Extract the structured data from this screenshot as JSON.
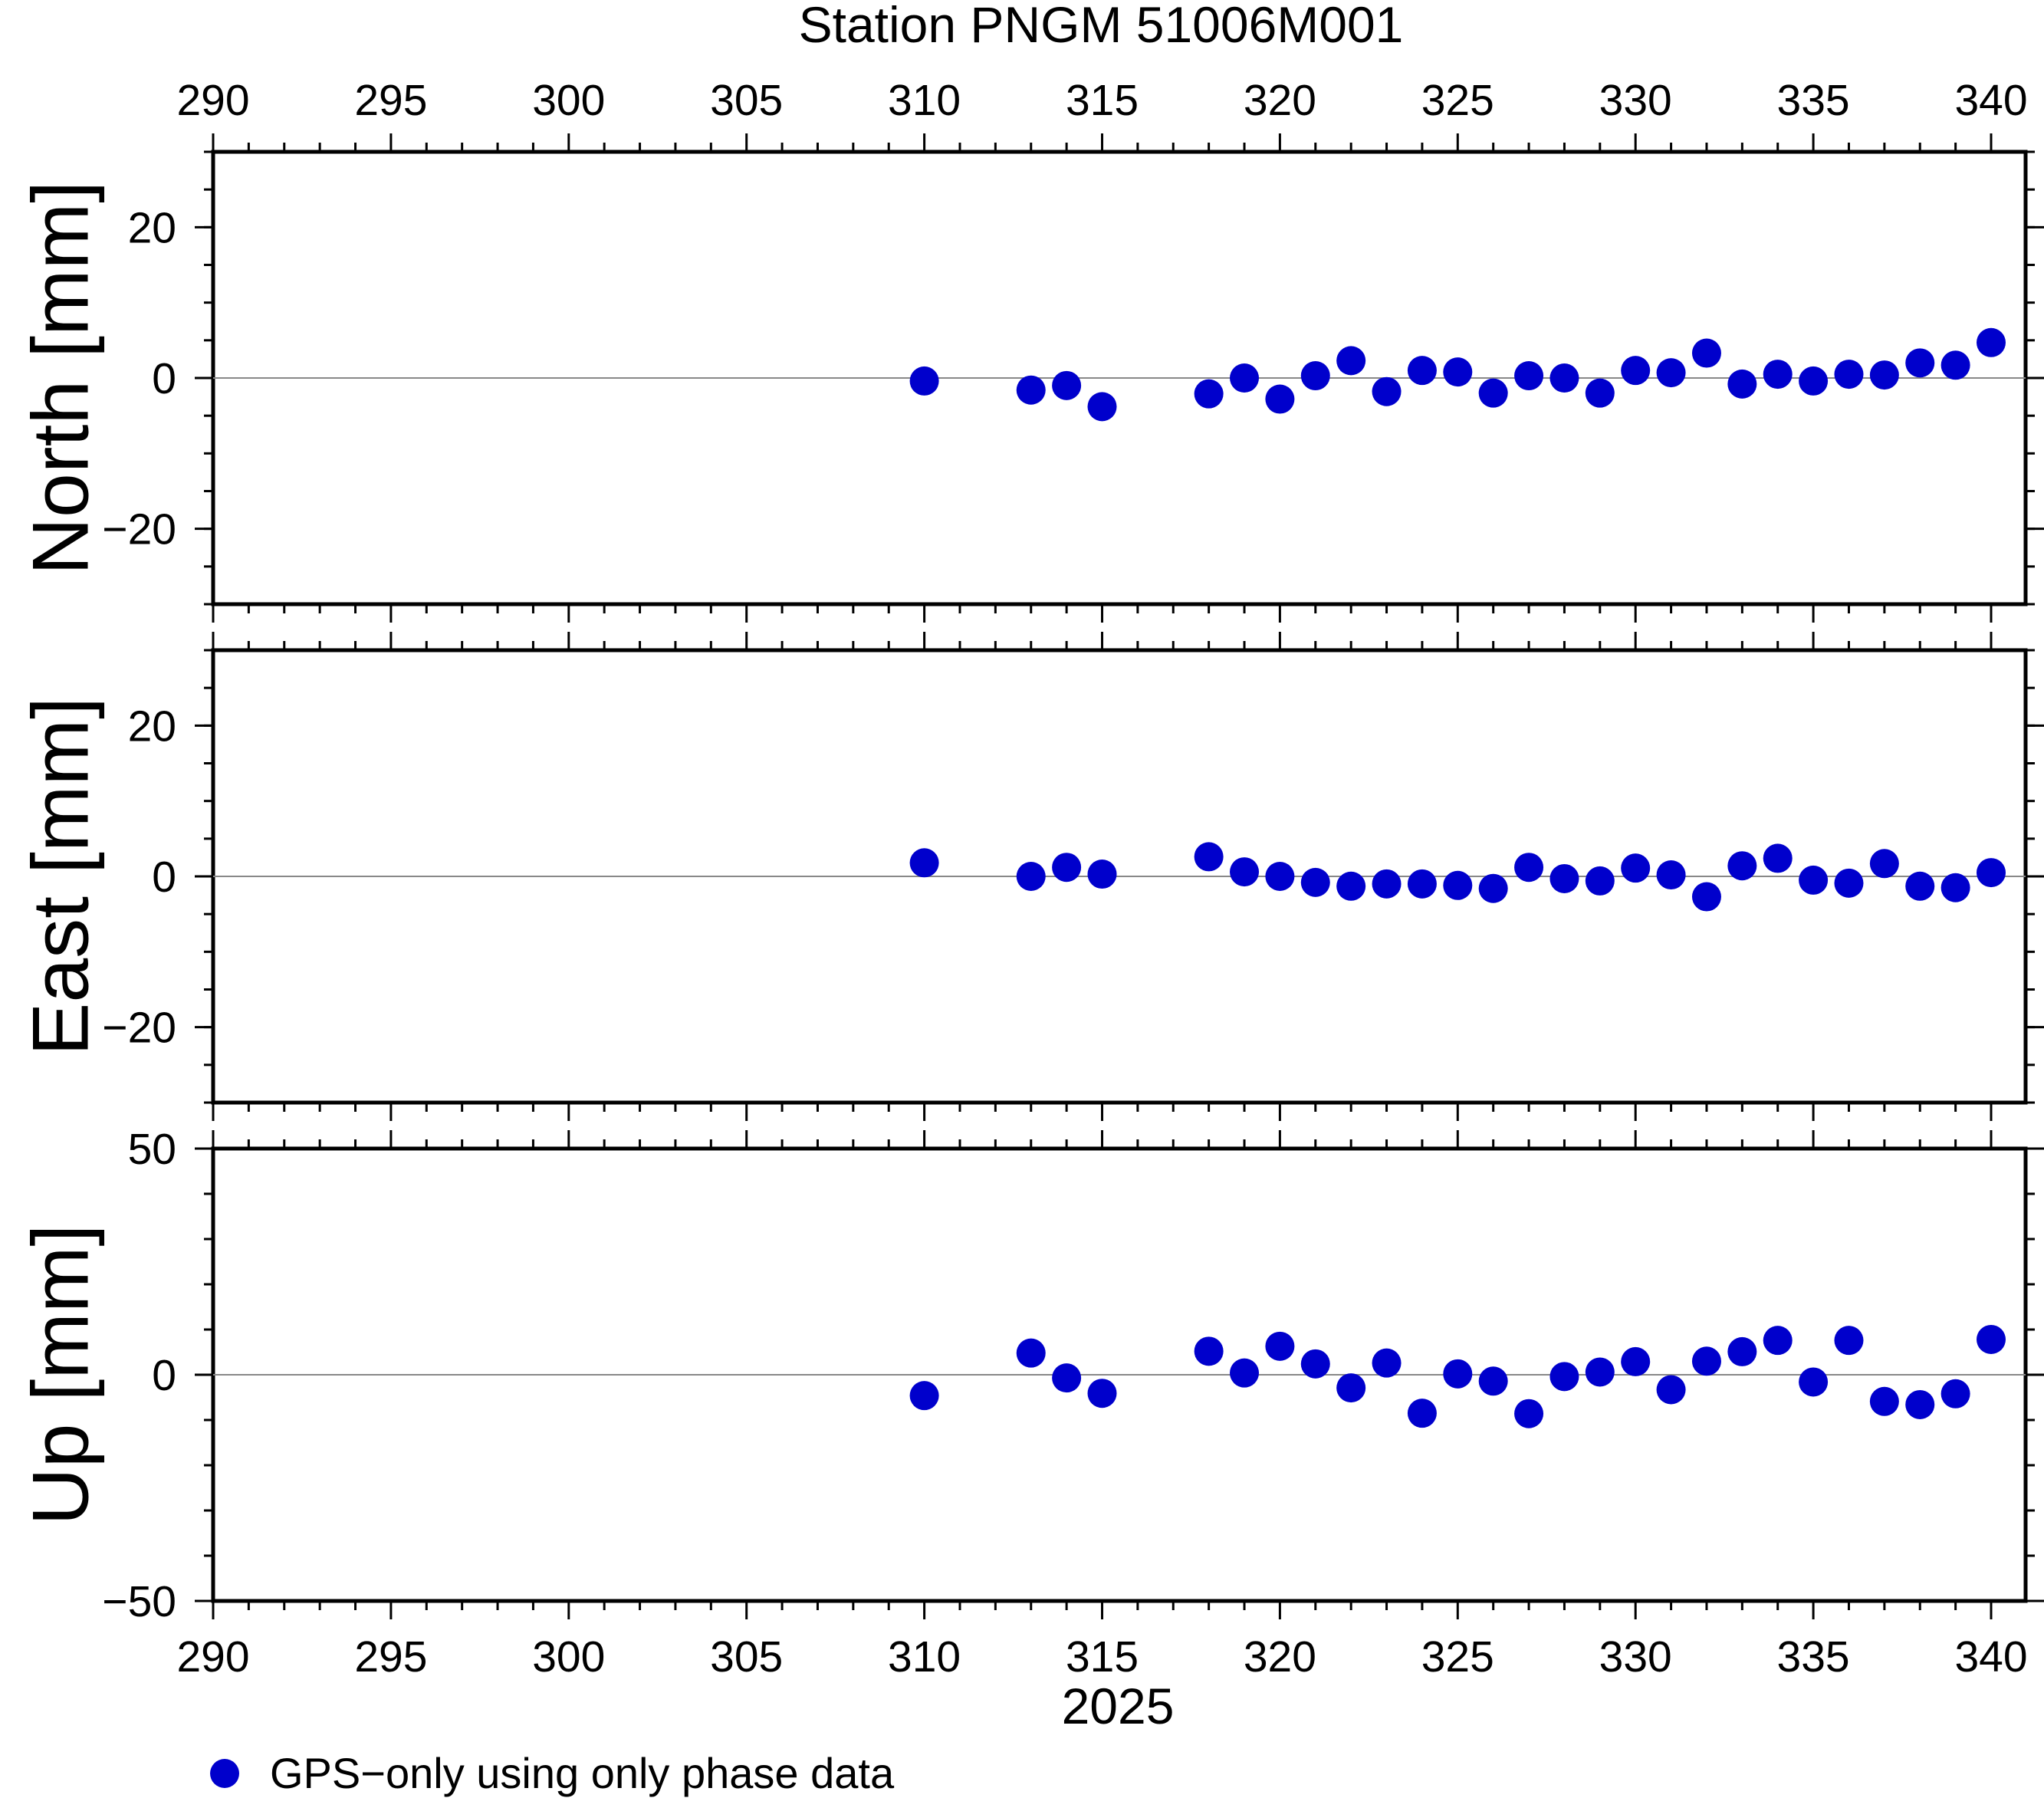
{
  "title": "Station PNGM 51006M001",
  "xlabel": "2025",
  "legend": {
    "label": "GPS−only using only phase data"
  },
  "colors": {
    "marker": "#0000cc",
    "frame": "#000000",
    "zero_line": "#888888"
  },
  "chart_data": {
    "type": "scatter",
    "title": "Station PNGM 51006M001",
    "xlabel": "2025",
    "xlim": [
      290,
      340.5
    ],
    "x_ticks": [
      290,
      295,
      300,
      305,
      310,
      315,
      320,
      325,
      330,
      335,
      340
    ],
    "grid": false,
    "legend_position": "bottom-left",
    "x": [
      310,
      313,
      314,
      315,
      318,
      319,
      320,
      321,
      322,
      323,
      324,
      325,
      326,
      327,
      328,
      329,
      330,
      331,
      332,
      333,
      334,
      335,
      336,
      337,
      338,
      339,
      340
    ],
    "panels": [
      {
        "name": "north",
        "ylabel": "North [mm]",
        "ylim": [
          -30,
          30
        ],
        "y_ticks": [
          -20,
          0,
          20
        ],
        "y_tick_labels": [
          "−20",
          "0",
          "20"
        ],
        "series": [
          {
            "values": [
              -0.4,
              -1.6,
              -1.0,
              -3.8,
              -2.1,
              0.0,
              -2.8,
              0.3,
              2.3,
              -1.8,
              1.0,
              0.8,
              -2.0,
              0.3,
              0.0,
              -2.0,
              1.0,
              0.7,
              3.3,
              -0.8,
              0.5,
              -0.4,
              0.5,
              0.4,
              2.0,
              1.7,
              4.7
            ]
          }
        ]
      },
      {
        "name": "east",
        "ylabel": "East [mm]",
        "ylim": [
          -30,
          30
        ],
        "y_ticks": [
          -20,
          0,
          20
        ],
        "y_tick_labels": [
          "−20",
          "0",
          "20"
        ],
        "series": [
          {
            "values": [
              1.8,
              0.0,
              1.2,
              0.3,
              2.6,
              0.6,
              0.0,
              -0.8,
              -1.3,
              -1.0,
              -1.0,
              -1.2,
              -1.6,
              1.2,
              -0.3,
              -0.6,
              1.1,
              0.2,
              -2.7,
              1.4,
              2.4,
              -0.5,
              -0.9,
              1.7,
              -1.3,
              -1.5,
              0.5
            ]
          }
        ]
      },
      {
        "name": "up",
        "ylabel": "Up [mm]",
        "ylim": [
          -50,
          50
        ],
        "y_ticks": [
          -50,
          0,
          50
        ],
        "y_tick_labels": [
          "−50",
          "0",
          "50"
        ],
        "series": [
          {
            "values": [
              -4.6,
              4.8,
              -0.7,
              -4.1,
              5.2,
              0.4,
              6.3,
              2.4,
              -2.9,
              2.6,
              -8.5,
              0.2,
              -1.4,
              -8.6,
              -0.4,
              0.6,
              2.9,
              -3.3,
              3.0,
              5.1,
              7.6,
              -1.6,
              7.6,
              -5.9,
              -6.6,
              -4.2,
              7.8
            ]
          }
        ]
      }
    ]
  }
}
